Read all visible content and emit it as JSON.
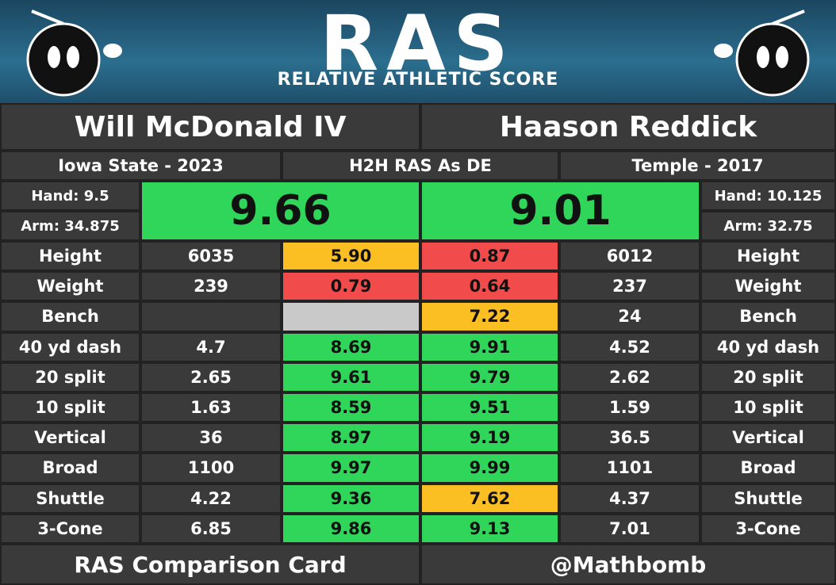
{
  "header": {
    "logo": "RAS",
    "subtitle": "RELATIVE ATHLETIC SCORE"
  },
  "left": {
    "name": "Will McDonald IV",
    "school": "Iowa State - 2023",
    "score": "9.66",
    "hand": "Hand: 9.5",
    "arm": "Arm: 34.875"
  },
  "center": "H2H RAS As DE",
  "right": {
    "name": "Haason Reddick",
    "school": "Temple - 2017",
    "score": "9.01",
    "hand": "Hand: 10.125",
    "arm": "Arm: 32.75"
  },
  "rows": [
    {
      "metric": "Height",
      "left_value": "6035",
      "left_score": "5.90",
      "left_color": "#fbbf24",
      "right_score": "0.87",
      "right_color": "#f24b4b",
      "right_value": "6012"
    },
    {
      "metric": "Weight",
      "left_value": "239",
      "left_score": "0.79",
      "left_color": "#f24b4b",
      "right_score": "0.64",
      "right_color": "#f24b4b",
      "right_value": "237"
    },
    {
      "metric": "Bench",
      "left_value": null,
      "left_score": null,
      "left_color": "#c9c9c9",
      "right_score": "7.22",
      "right_color": "#fbbf24",
      "right_value": "24"
    },
    {
      "metric": "40 yd dash",
      "left_value": "4.7",
      "left_score": "8.69",
      "left_color": "#2fd65a",
      "right_score": "9.91",
      "right_color": "#2fd65a",
      "right_value": "4.52"
    },
    {
      "metric": "20 split",
      "left_value": "2.65",
      "left_score": "9.61",
      "left_color": "#2fd65a",
      "right_score": "9.79",
      "right_color": "#2fd65a",
      "right_value": "2.62"
    },
    {
      "metric": "10 split",
      "left_value": "1.63",
      "left_score": "8.59",
      "left_color": "#2fd65a",
      "right_score": "9.51",
      "right_color": "#2fd65a",
      "right_value": "1.59"
    },
    {
      "metric": "Vertical",
      "left_value": "36",
      "left_score": "8.97",
      "left_color": "#2fd65a",
      "right_score": "9.19",
      "right_color": "#2fd65a",
      "right_value": "36.5"
    },
    {
      "metric": "Broad",
      "left_value": "1100",
      "left_score": "9.97",
      "left_color": "#2fd65a",
      "right_score": "9.99",
      "right_color": "#2fd65a",
      "right_value": "1101"
    },
    {
      "metric": "Shuttle",
      "left_value": "4.22",
      "left_score": "9.36",
      "left_color": "#2fd65a",
      "right_score": "7.62",
      "right_color": "#fbbf24",
      "right_value": "4.37"
    },
    {
      "metric": "3-Cone",
      "left_value": "6.85",
      "left_score": "9.86",
      "left_color": "#2fd65a",
      "right_score": "9.13",
      "right_color": "#2fd65a",
      "right_value": "7.01"
    }
  ],
  "footer": {
    "left": "RAS Comparison Card",
    "right": "@Mathbomb"
  }
}
